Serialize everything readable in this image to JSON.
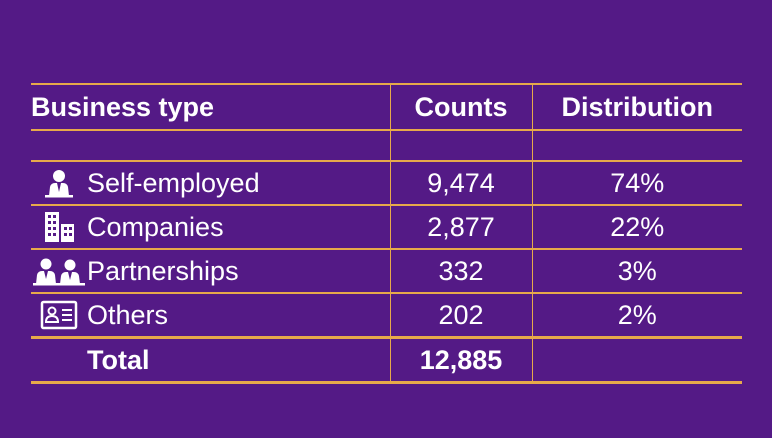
{
  "chart_data": {
    "type": "table",
    "columns": [
      "Business type",
      "Counts",
      "Distribution"
    ],
    "rows": [
      {
        "business_type": "Self-employed",
        "icon": "person-icon",
        "counts": "9,474",
        "distribution": "74%"
      },
      {
        "business_type": "Companies",
        "icon": "building-icon",
        "counts": "2,877",
        "distribution": "22%"
      },
      {
        "business_type": "Partnerships",
        "icon": "two-people-icon",
        "counts": "332",
        "distribution": "3%"
      },
      {
        "business_type": "Others",
        "icon": "id-card-icon",
        "counts": "202",
        "distribution": "2%"
      }
    ],
    "total": {
      "label": "Total",
      "counts": "12,885",
      "distribution": ""
    }
  },
  "colors": {
    "background": "#541A86",
    "rules": "#E7A94A",
    "text": "#FFFFFF"
  }
}
